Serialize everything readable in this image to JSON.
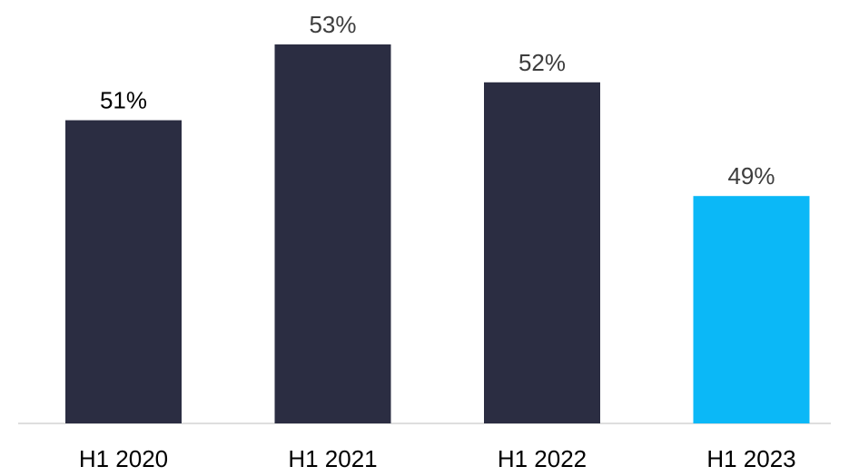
{
  "chart_data": {
    "type": "bar",
    "categories": [
      "H1 2020",
      "H1 2021",
      "H1 2022",
      "H1 2023"
    ],
    "values": [
      51,
      53,
      52,
      49
    ],
    "value_labels": [
      "51%",
      "53%",
      "52%",
      "49%"
    ],
    "title": "",
    "xlabel": "",
    "ylabel": "",
    "ylim": [
      43,
      53
    ],
    "grid": false,
    "legend": "none",
    "colors": {
      "bar_default": "#2b2d42",
      "bar_highlight": "#0bb8f7",
      "axis": "#d3d3d3",
      "label_dark": "#000000",
      "label_muted": "#3d3d3d"
    },
    "highlight_index": 3
  }
}
